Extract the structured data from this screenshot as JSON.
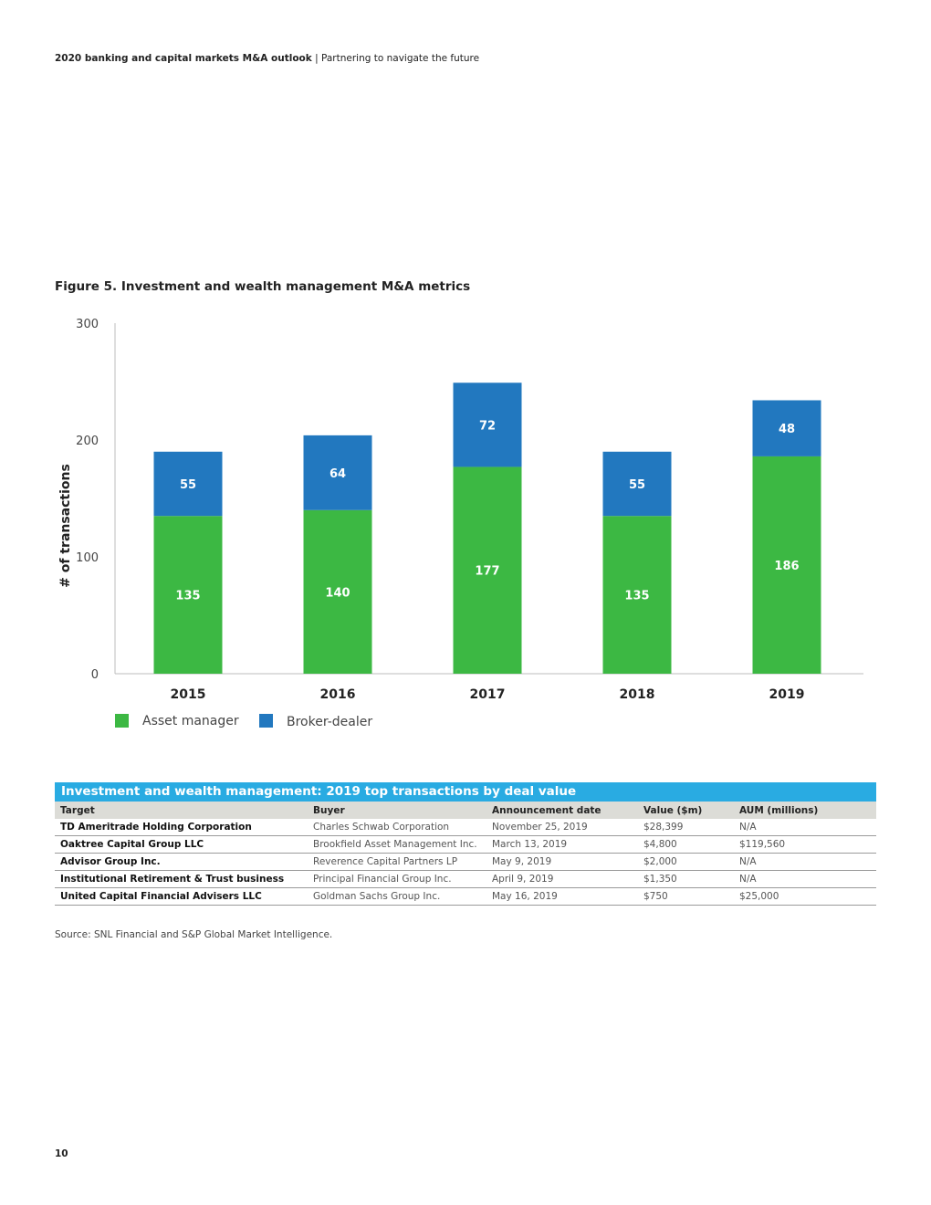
{
  "header": {
    "title": "2020 banking and capital markets M&A outlook",
    "separator": "|",
    "subtitle": "Partnering to navigate the future"
  },
  "figure_title": "Figure 5. Investment and wealth management M&A metrics",
  "colors": {
    "asset_manager": "#3cb843",
    "broker_dealer": "#2278bf",
    "table_title_bg": "#29abe2"
  },
  "chart_data": {
    "type": "bar",
    "stacked": true,
    "title": "",
    "xlabel": "",
    "ylabel": "# of transactions",
    "ylim": [
      0,
      300
    ],
    "yticks": [
      0,
      100,
      200,
      300
    ],
    "categories": [
      "2015",
      "2016",
      "2017",
      "2018",
      "2019"
    ],
    "series": [
      {
        "name": "Asset manager",
        "values": [
          135,
          140,
          177,
          135,
          186
        ]
      },
      {
        "name": "Broker-dealer",
        "values": [
          55,
          64,
          72,
          55,
          48
        ]
      }
    ],
    "legend_position": "bottom-left",
    "grid": false
  },
  "table": {
    "title": "Investment and wealth management: 2019 top transactions by deal value",
    "headers": [
      "Target",
      "Buyer",
      "Announcement date",
      "Value ($m)",
      "AUM (millions)"
    ],
    "rows": [
      [
        "TD Ameritrade Holding Corporation",
        "Charles Schwab Corporation",
        "November 25, 2019",
        "$28,399",
        "N/A"
      ],
      [
        "Oaktree Capital Group LLC",
        "Brookfield Asset Management Inc.",
        "March 13, 2019",
        "$4,800",
        "$119,560"
      ],
      [
        "Advisor Group Inc.",
        "Reverence Capital Partners LP",
        "May 9, 2019",
        "$2,000",
        "N/A"
      ],
      [
        "Institutional Retirement & Trust business",
        "Principal Financial Group Inc.",
        "April 9, 2019",
        "$1,350",
        "N/A"
      ],
      [
        "United Capital Financial Advisers LLC",
        "Goldman Sachs Group Inc.",
        "May 16, 2019",
        "$750",
        "$25,000"
      ]
    ]
  },
  "source": "Source: SNL Financial and S&P Global Market Intelligence.",
  "page_number": "10"
}
